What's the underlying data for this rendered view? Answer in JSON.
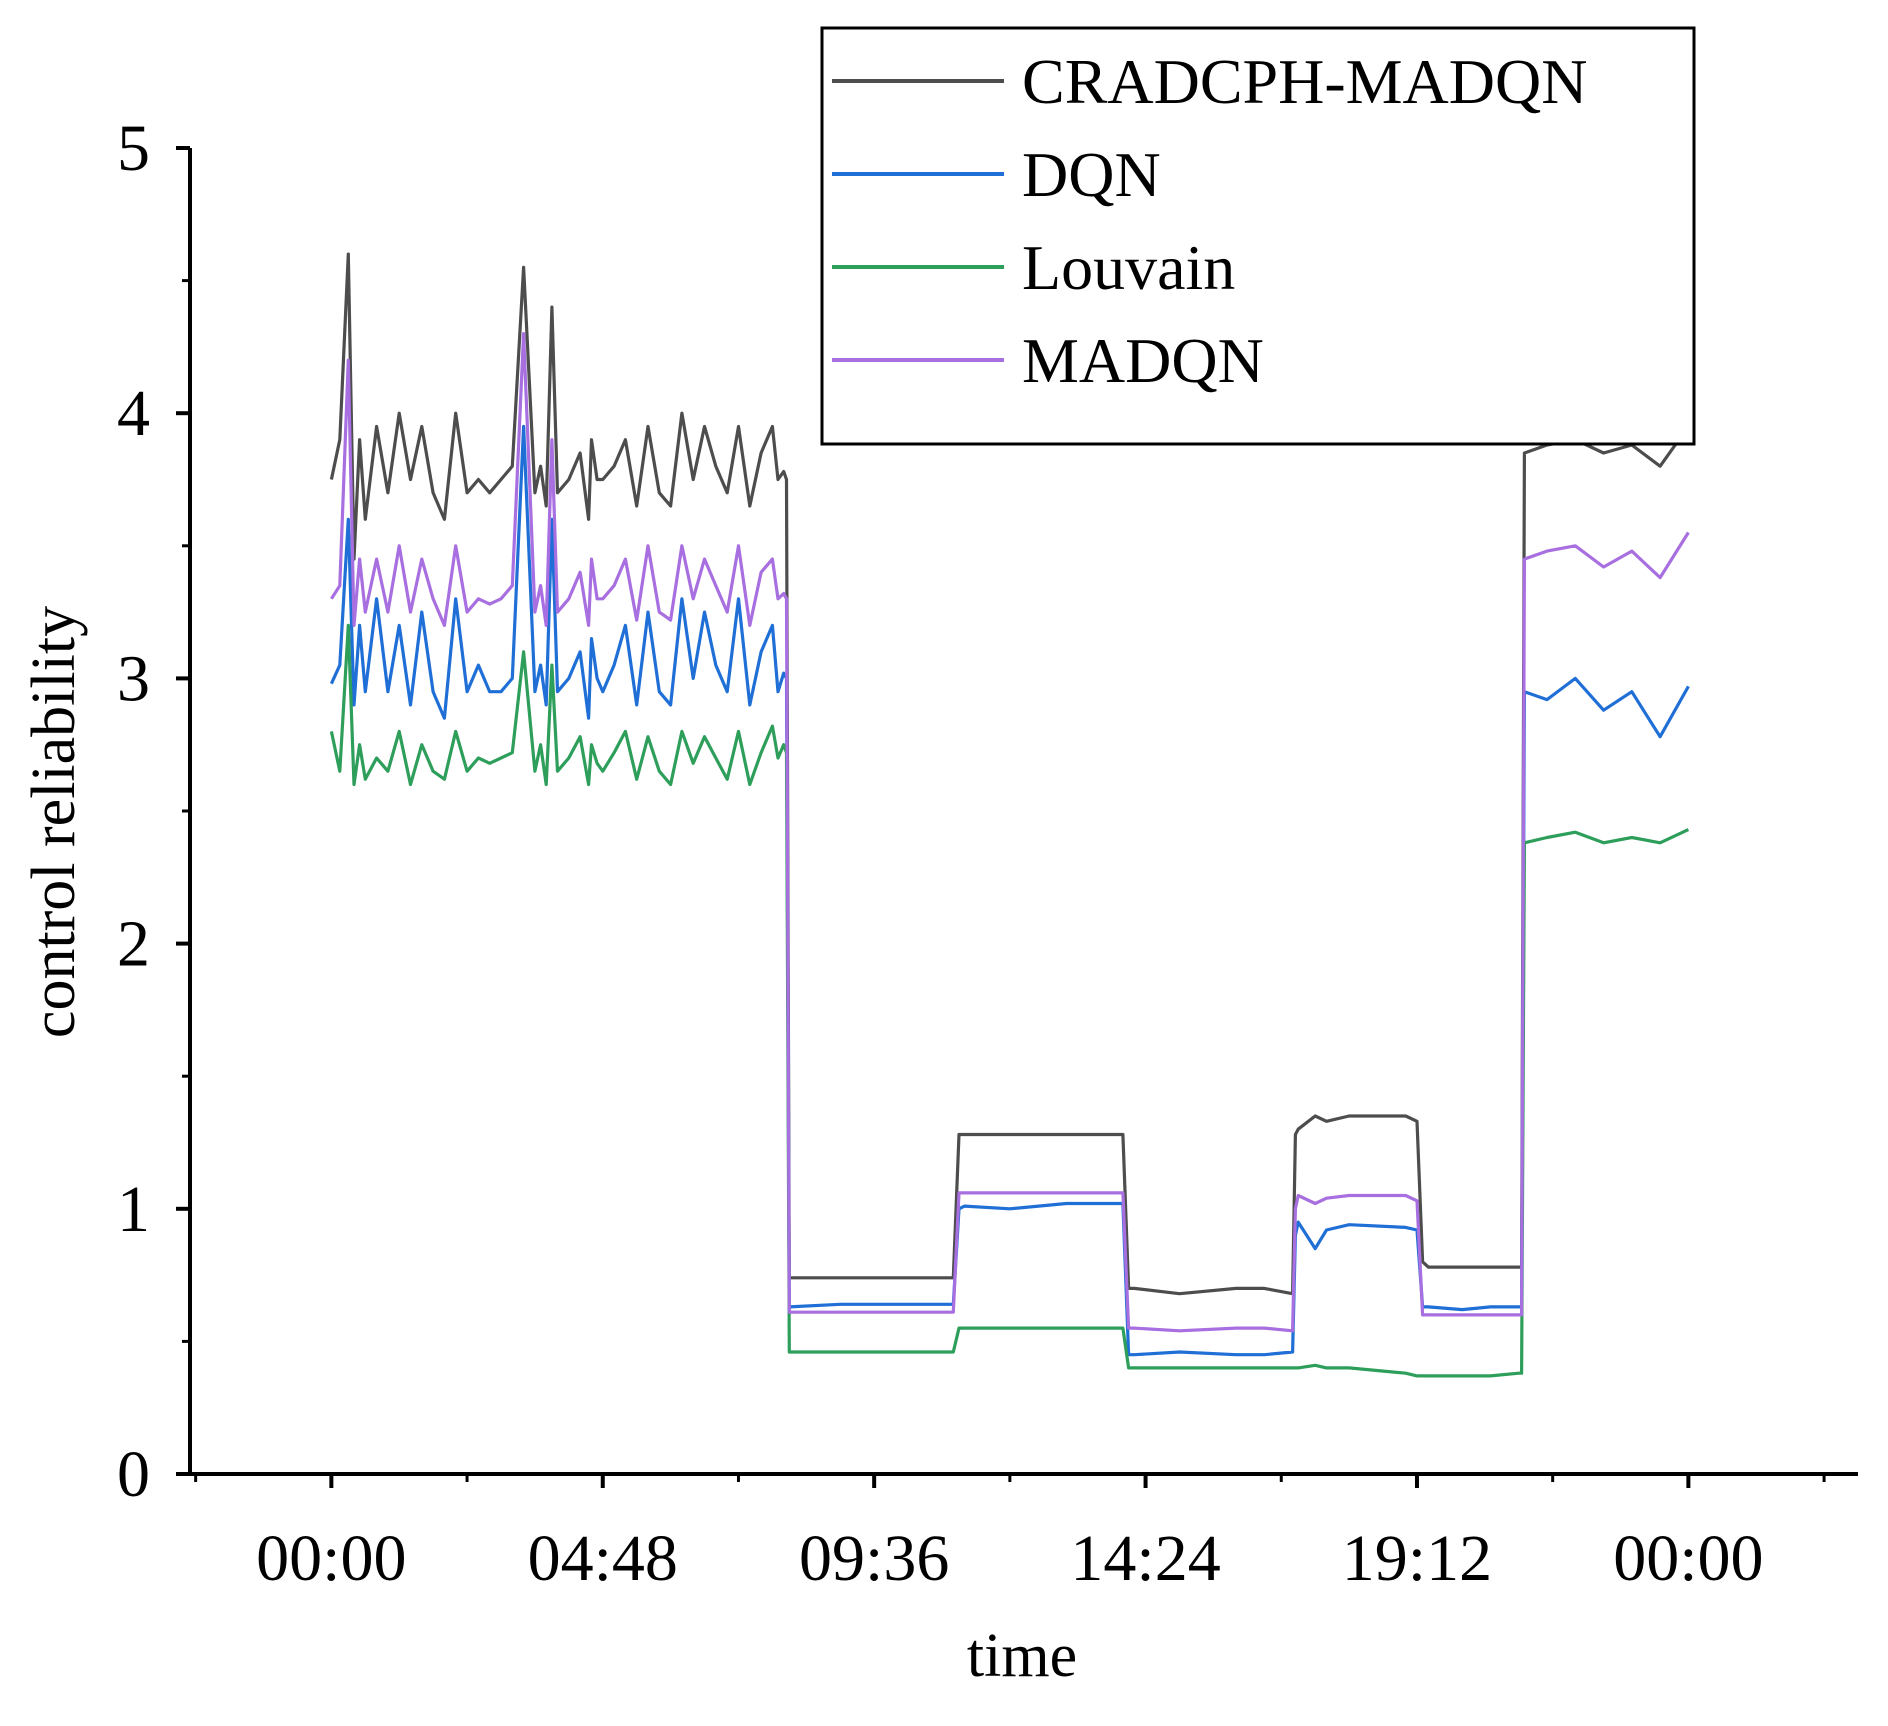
{
  "chart_data": {
    "type": "line",
    "title": "",
    "xlabel": "time",
    "ylabel": "control reliability",
    "xlim": [
      -2.5,
      27
    ],
    "ylim": [
      0,
      5
    ],
    "xticks": [
      {
        "value": 0,
        "label": "00:00"
      },
      {
        "value": 4.8,
        "label": "04:48"
      },
      {
        "value": 9.6,
        "label": "09:36"
      },
      {
        "value": 14.4,
        "label": "14:24"
      },
      {
        "value": 19.2,
        "label": "19:12"
      },
      {
        "value": 24,
        "label": "00:00"
      }
    ],
    "yticks": [
      {
        "value": 0,
        "label": "0"
      },
      {
        "value": 1,
        "label": "1"
      },
      {
        "value": 2,
        "label": "2"
      },
      {
        "value": 3,
        "label": "3"
      },
      {
        "value": 4,
        "label": "4"
      },
      {
        "value": 5,
        "label": "5"
      }
    ],
    "legend_position": "top-right",
    "grid": false,
    "series": [
      {
        "name": "CRADCPH-MADQN",
        "color": "#4d4d4d",
        "x": [
          0,
          0.15,
          0.3,
          0.4,
          0.5,
          0.6,
          0.8,
          1.0,
          1.2,
          1.4,
          1.6,
          1.8,
          2.0,
          2.2,
          2.4,
          2.6,
          2.8,
          3.0,
          3.2,
          3.4,
          3.6,
          3.7,
          3.8,
          3.9,
          4.0,
          4.2,
          4.4,
          4.55,
          4.6,
          4.7,
          4.8,
          5.0,
          5.2,
          5.4,
          5.6,
          5.8,
          6.0,
          6.2,
          6.4,
          6.6,
          6.8,
          7.0,
          7.2,
          7.4,
          7.6,
          7.8,
          7.9,
          8.0,
          8.05,
          8.1,
          9.0,
          10.0,
          11.0,
          11.1,
          11.2,
          12.0,
          13.0,
          14.0,
          14.1,
          14.2,
          15.0,
          16.0,
          16.5,
          17.0,
          17.05,
          17.1,
          17.4,
          17.6,
          18.0,
          19.0,
          19.2,
          19.3,
          19.4,
          20.0,
          20.5,
          21.0,
          21.05,
          21.1,
          21.5,
          22.0,
          22.5,
          23.0,
          23.5,
          24.0
        ],
        "values": [
          3.75,
          3.9,
          4.6,
          3.45,
          3.9,
          3.6,
          3.95,
          3.7,
          4.0,
          3.75,
          3.95,
          3.7,
          3.6,
          4.0,
          3.7,
          3.75,
          3.7,
          3.75,
          3.8,
          4.55,
          3.7,
          3.8,
          3.65,
          4.4,
          3.7,
          3.75,
          3.85,
          3.6,
          3.9,
          3.75,
          3.75,
          3.8,
          3.9,
          3.65,
          3.95,
          3.7,
          3.65,
          4.0,
          3.75,
          3.95,
          3.8,
          3.7,
          3.95,
          3.65,
          3.85,
          3.95,
          3.75,
          3.78,
          3.75,
          0.74,
          0.74,
          0.74,
          0.74,
          1.28,
          1.28,
          1.28,
          1.28,
          1.28,
          0.7,
          0.7,
          0.68,
          0.7,
          0.7,
          0.68,
          1.28,
          1.3,
          1.35,
          1.33,
          1.35,
          1.35,
          1.33,
          0.8,
          0.78,
          0.78,
          0.78,
          0.78,
          0.78,
          3.85,
          3.88,
          3.9,
          3.85,
          3.88,
          3.8,
          3.95
        ]
      },
      {
        "name": "DQN",
        "color": "#1f6fd6",
        "x": [
          0,
          0.15,
          0.3,
          0.4,
          0.5,
          0.6,
          0.8,
          1.0,
          1.2,
          1.4,
          1.6,
          1.8,
          2.0,
          2.2,
          2.4,
          2.6,
          2.8,
          3.0,
          3.2,
          3.4,
          3.6,
          3.7,
          3.8,
          3.9,
          4.0,
          4.2,
          4.4,
          4.55,
          4.6,
          4.7,
          4.8,
          5.0,
          5.2,
          5.4,
          5.6,
          5.8,
          6.0,
          6.2,
          6.4,
          6.6,
          6.8,
          7.0,
          7.2,
          7.4,
          7.6,
          7.8,
          7.9,
          8.0,
          8.05,
          8.1,
          9.0,
          10.0,
          11.0,
          11.1,
          11.2,
          12.0,
          13.0,
          14.0,
          14.1,
          14.2,
          15.0,
          16.0,
          16.5,
          17.0,
          17.05,
          17.1,
          17.4,
          17.6,
          18.0,
          19.0,
          19.2,
          19.3,
          19.4,
          20.0,
          20.5,
          21.0,
          21.05,
          21.1,
          21.5,
          22.0,
          22.5,
          23.0,
          23.5,
          24.0
        ],
        "values": [
          2.98,
          3.05,
          3.6,
          2.9,
          3.2,
          2.95,
          3.3,
          2.95,
          3.2,
          2.9,
          3.25,
          2.95,
          2.85,
          3.3,
          2.95,
          3.05,
          2.95,
          2.95,
          3.0,
          3.95,
          2.95,
          3.05,
          2.9,
          3.6,
          2.95,
          3.0,
          3.1,
          2.85,
          3.15,
          3.0,
          2.95,
          3.05,
          3.2,
          2.9,
          3.25,
          2.95,
          2.9,
          3.3,
          3.0,
          3.25,
          3.05,
          2.95,
          3.3,
          2.9,
          3.1,
          3.2,
          2.95,
          3.02,
          3.0,
          0.63,
          0.64,
          0.64,
          0.64,
          1.0,
          1.01,
          1.0,
          1.02,
          1.02,
          0.45,
          0.45,
          0.46,
          0.45,
          0.45,
          0.46,
          0.9,
          0.95,
          0.85,
          0.92,
          0.94,
          0.93,
          0.92,
          0.63,
          0.63,
          0.62,
          0.63,
          0.63,
          0.63,
          2.95,
          2.92,
          3.0,
          2.88,
          2.95,
          2.78,
          2.97
        ]
      },
      {
        "name": "Louvain",
        "color": "#2e9e5b",
        "x": [
          0,
          0.15,
          0.3,
          0.4,
          0.5,
          0.6,
          0.8,
          1.0,
          1.2,
          1.4,
          1.6,
          1.8,
          2.0,
          2.2,
          2.4,
          2.6,
          2.8,
          3.0,
          3.2,
          3.4,
          3.6,
          3.7,
          3.8,
          3.9,
          4.0,
          4.2,
          4.4,
          4.55,
          4.6,
          4.7,
          4.8,
          5.0,
          5.2,
          5.4,
          5.6,
          5.8,
          6.0,
          6.2,
          6.4,
          6.6,
          6.8,
          7.0,
          7.2,
          7.4,
          7.6,
          7.8,
          7.9,
          8.0,
          8.05,
          8.1,
          9.0,
          10.0,
          11.0,
          11.1,
          11.2,
          12.0,
          13.0,
          14.0,
          14.1,
          14.2,
          15.0,
          16.0,
          16.5,
          17.0,
          17.05,
          17.1,
          17.4,
          17.6,
          18.0,
          19.0,
          19.2,
          19.3,
          19.4,
          20.0,
          20.5,
          21.0,
          21.05,
          21.1,
          21.5,
          22.0,
          22.5,
          23.0,
          23.5,
          24.0
        ],
        "values": [
          2.8,
          2.65,
          3.2,
          2.6,
          2.75,
          2.62,
          2.7,
          2.65,
          2.8,
          2.6,
          2.75,
          2.65,
          2.62,
          2.8,
          2.65,
          2.7,
          2.68,
          2.7,
          2.72,
          3.1,
          2.65,
          2.75,
          2.6,
          3.05,
          2.65,
          2.7,
          2.78,
          2.6,
          2.75,
          2.68,
          2.65,
          2.72,
          2.8,
          2.62,
          2.78,
          2.65,
          2.6,
          2.8,
          2.68,
          2.78,
          2.7,
          2.62,
          2.8,
          2.6,
          2.72,
          2.82,
          2.7,
          2.75,
          2.72,
          0.46,
          0.46,
          0.46,
          0.46,
          0.55,
          0.55,
          0.55,
          0.55,
          0.55,
          0.4,
          0.4,
          0.4,
          0.4,
          0.4,
          0.4,
          0.4,
          0.4,
          0.41,
          0.4,
          0.4,
          0.38,
          0.37,
          0.37,
          0.37,
          0.37,
          0.37,
          0.38,
          0.38,
          2.38,
          2.4,
          2.42,
          2.38,
          2.4,
          2.38,
          2.43
        ]
      },
      {
        "name": "MADQN",
        "color": "#a86fe0",
        "x": [
          0,
          0.15,
          0.3,
          0.4,
          0.5,
          0.6,
          0.8,
          1.0,
          1.2,
          1.4,
          1.6,
          1.8,
          2.0,
          2.2,
          2.4,
          2.6,
          2.8,
          3.0,
          3.2,
          3.4,
          3.6,
          3.7,
          3.8,
          3.9,
          4.0,
          4.2,
          4.4,
          4.55,
          4.6,
          4.7,
          4.8,
          5.0,
          5.2,
          5.4,
          5.6,
          5.8,
          6.0,
          6.2,
          6.4,
          6.6,
          6.8,
          7.0,
          7.2,
          7.4,
          7.6,
          7.8,
          7.9,
          8.0,
          8.05,
          8.1,
          9.0,
          10.0,
          11.0,
          11.1,
          11.2,
          12.0,
          13.0,
          14.0,
          14.1,
          14.2,
          15.0,
          16.0,
          16.5,
          17.0,
          17.05,
          17.1,
          17.4,
          17.6,
          18.0,
          19.0,
          19.2,
          19.3,
          19.4,
          20.0,
          20.5,
          21.0,
          21.05,
          21.1,
          21.5,
          22.0,
          22.5,
          23.0,
          23.5,
          24.0
        ],
        "values": [
          3.3,
          3.35,
          4.2,
          3.2,
          3.45,
          3.25,
          3.45,
          3.25,
          3.5,
          3.25,
          3.45,
          3.3,
          3.2,
          3.5,
          3.25,
          3.3,
          3.28,
          3.3,
          3.35,
          4.3,
          3.25,
          3.35,
          3.2,
          3.9,
          3.25,
          3.3,
          3.4,
          3.2,
          3.45,
          3.3,
          3.3,
          3.35,
          3.45,
          3.22,
          3.5,
          3.25,
          3.22,
          3.5,
          3.3,
          3.45,
          3.35,
          3.25,
          3.5,
          3.2,
          3.4,
          3.45,
          3.3,
          3.32,
          3.3,
          0.61,
          0.61,
          0.61,
          0.61,
          1.06,
          1.06,
          1.06,
          1.06,
          1.06,
          0.55,
          0.55,
          0.54,
          0.55,
          0.55,
          0.54,
          1.0,
          1.05,
          1.02,
          1.04,
          1.05,
          1.05,
          1.03,
          0.6,
          0.6,
          0.6,
          0.6,
          0.6,
          0.6,
          3.45,
          3.48,
          3.5,
          3.42,
          3.48,
          3.38,
          3.55
        ]
      }
    ]
  }
}
